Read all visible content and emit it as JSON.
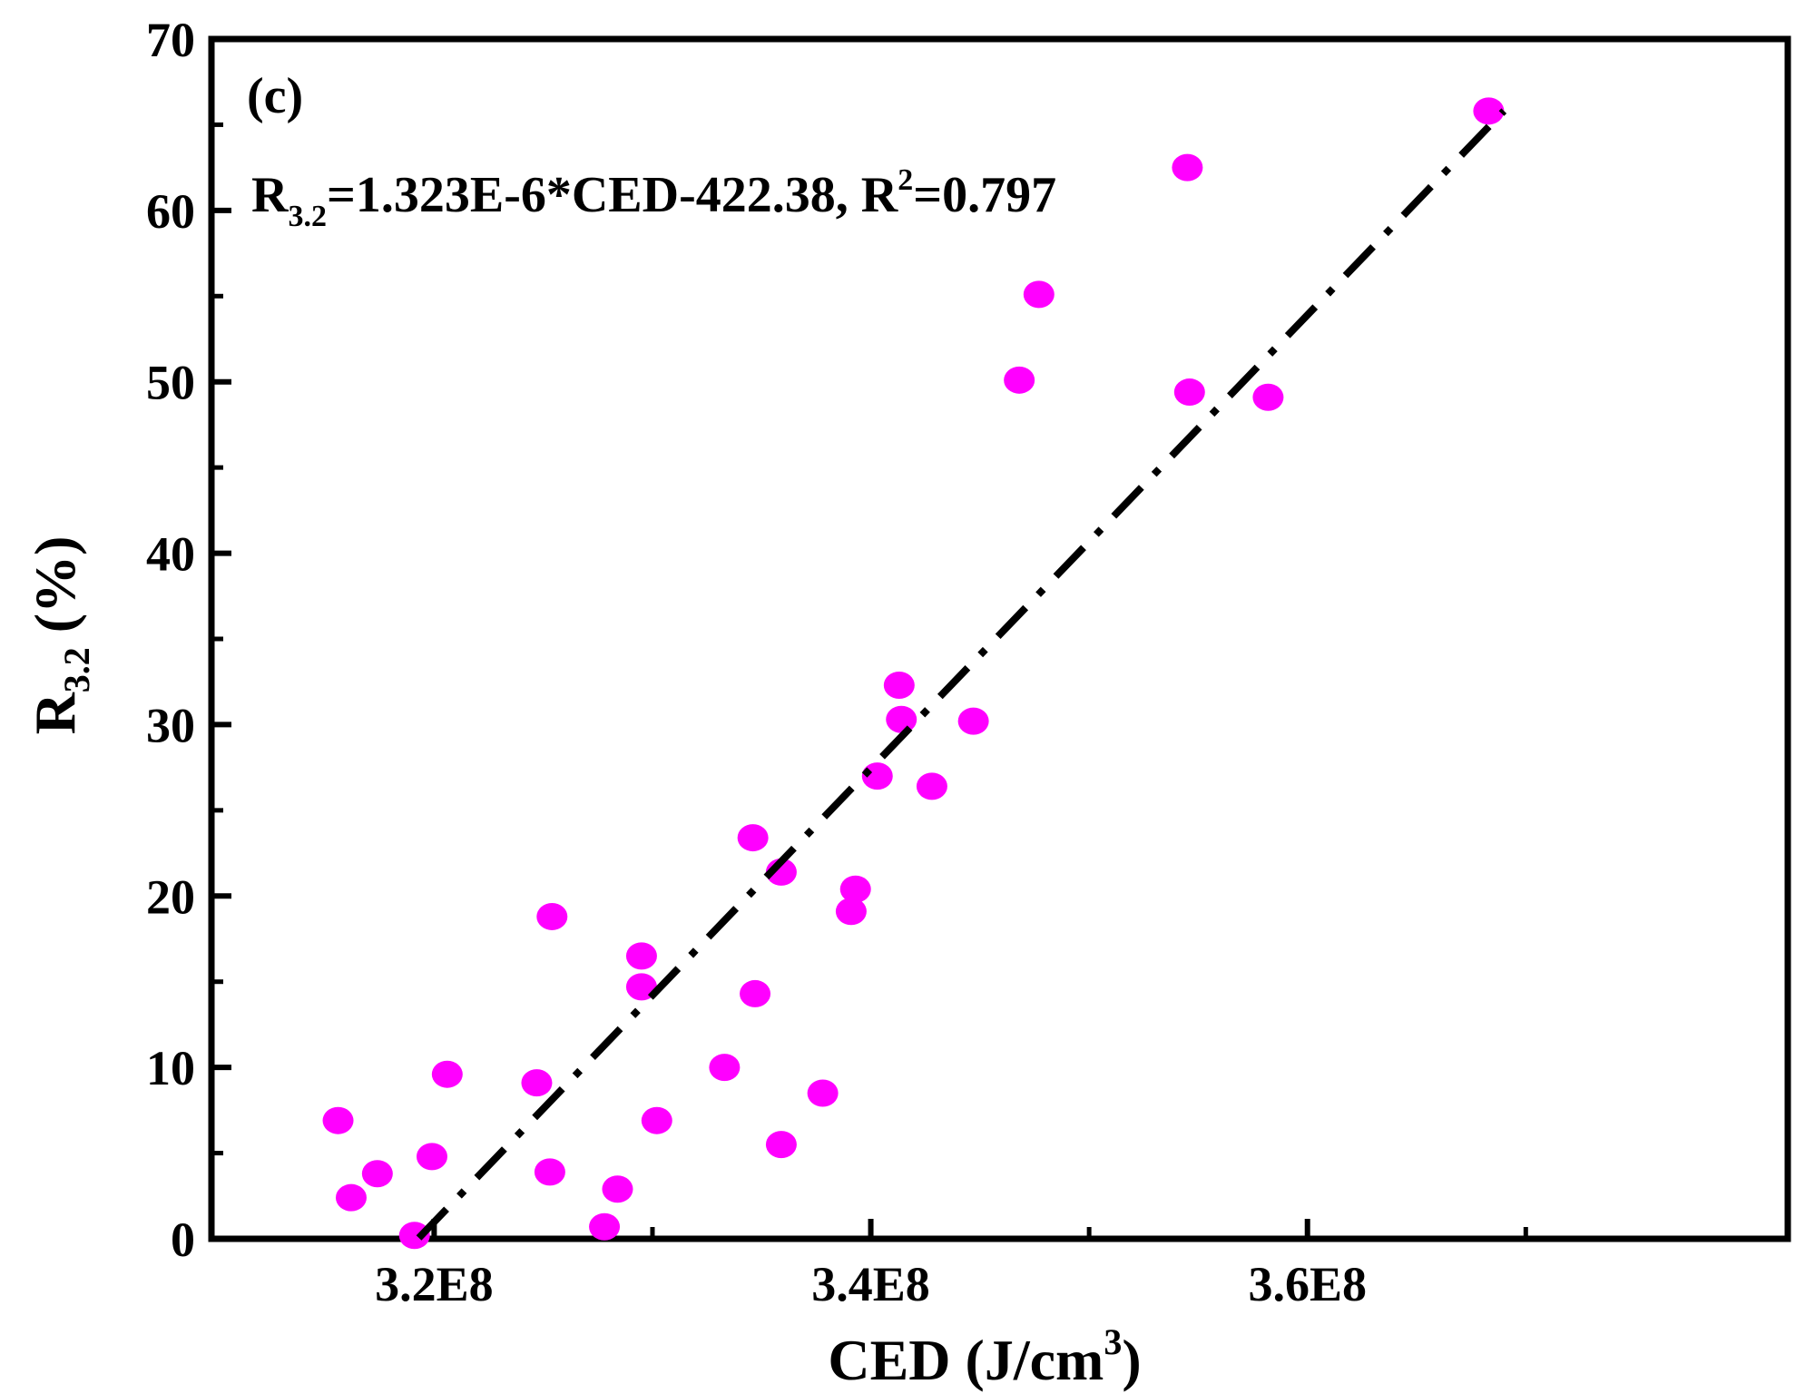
{
  "chart_data": {
    "type": "scatter",
    "panel_label": "(c)",
    "equation": {
      "lhs": "R",
      "lhs_sub": "3.2",
      "rhs": "=1.323E-6*CED-422.38, R",
      "r_sup": "2",
      "r_value": "=0.797"
    },
    "xlabel": {
      "main": "CED (J/cm",
      "sup": "3",
      "end": ")"
    },
    "ylabel": {
      "main": "R",
      "sub": "3.2",
      "end": " (%)"
    },
    "xlim": [
      309800000,
      382000000
    ],
    "ylim": [
      0,
      70
    ],
    "x_ticks": [
      320000000,
      340000000,
      360000000
    ],
    "x_tick_labels": [
      "3.2E8",
      "3.4E8",
      "3.6E8"
    ],
    "x_minor_ticks": [
      330000000,
      350000000,
      370000000
    ],
    "y_ticks": [
      0,
      10,
      20,
      30,
      40,
      50,
      60,
      70
    ],
    "y_tick_labels": [
      "0",
      "10",
      "20",
      "30",
      "40",
      "50",
      "60",
      "70"
    ],
    "y_minor_ticks": [
      5,
      15,
      25,
      35,
      45,
      55,
      65
    ],
    "marker_color": "#ff00ff",
    "fit_line": {
      "slope": 1.323e-06,
      "intercept": -422.38,
      "x_range": [
        319300000,
        369000000
      ],
      "color": "#000000"
    },
    "points": [
      {
        "x": 315600000,
        "y": 6.9
      },
      {
        "x": 316200000,
        "y": 2.4
      },
      {
        "x": 317400000,
        "y": 3.8
      },
      {
        "x": 319100000,
        "y": 0.2
      },
      {
        "x": 319900000,
        "y": 4.8
      },
      {
        "x": 320600000,
        "y": 9.6
      },
      {
        "x": 324700000,
        "y": 9.1
      },
      {
        "x": 325300000,
        "y": 3.9
      },
      {
        "x": 325400000,
        "y": 18.8
      },
      {
        "x": 327800000,
        "y": 0.7
      },
      {
        "x": 328400000,
        "y": 2.9
      },
      {
        "x": 329500000,
        "y": 16.5
      },
      {
        "x": 329500000,
        "y": 14.7
      },
      {
        "x": 330200000,
        "y": 6.9
      },
      {
        "x": 333300000,
        "y": 10.0
      },
      {
        "x": 334600000,
        "y": 23.4
      },
      {
        "x": 334700000,
        "y": 14.3
      },
      {
        "x": 335900000,
        "y": 21.4
      },
      {
        "x": 335900000,
        "y": 5.5
      },
      {
        "x": 337800000,
        "y": 8.5
      },
      {
        "x": 339100000,
        "y": 19.1
      },
      {
        "x": 339300000,
        "y": 20.4
      },
      {
        "x": 340300000,
        "y": 27.0
      },
      {
        "x": 341300000,
        "y": 32.3
      },
      {
        "x": 341400000,
        "y": 30.3
      },
      {
        "x": 342800000,
        "y": 26.4
      },
      {
        "x": 344700000,
        "y": 30.2
      },
      {
        "x": 346800000,
        "y": 50.1
      },
      {
        "x": 347700000,
        "y": 55.1
      },
      {
        "x": 354500000,
        "y": 62.5
      },
      {
        "x": 354600000,
        "y": 49.4
      },
      {
        "x": 358200000,
        "y": 49.1
      },
      {
        "x": 368300000,
        "y": 65.8
      }
    ]
  }
}
